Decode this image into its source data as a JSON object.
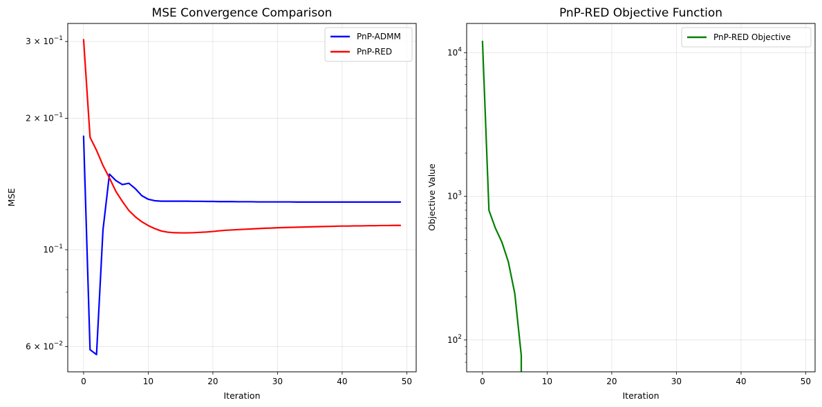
{
  "chart_data": [
    {
      "type": "line",
      "title": "MSE Convergence Comparison",
      "xlabel": "Iteration",
      "ylabel": "MSE",
      "yscale": "log",
      "xlim": [
        -2.45,
        51.45
      ],
      "ylim": [
        0.0525,
        0.33
      ],
      "grid": true,
      "legend": "top-right",
      "xticks": [
        0,
        10,
        20,
        30,
        40,
        50
      ],
      "xtick_labels": [
        "0",
        "10",
        "20",
        "30",
        "40",
        "50"
      ],
      "yticks": [
        0.06,
        0.1,
        0.2,
        0.3
      ],
      "ytick_labels": [
        {
          "base": "6 × 10",
          "exp": "−2"
        },
        {
          "base": "10",
          "exp": "−1"
        },
        {
          "base": "2 × 10",
          "exp": "−1"
        },
        {
          "base": "3 × 10",
          "exp": "−1"
        }
      ],
      "series": [
        {
          "name": "PnP-ADMM",
          "color": "#0000ff",
          "x": [
            0,
            1,
            2,
            3,
            4,
            5,
            6,
            7,
            8,
            9,
            10,
            11,
            12,
            13,
            14,
            15,
            16,
            17,
            18,
            19,
            20,
            21,
            22,
            23,
            24,
            25,
            26,
            27,
            28,
            29,
            30,
            31,
            32,
            33,
            34,
            35,
            36,
            37,
            38,
            39,
            40,
            41,
            42,
            43,
            44,
            45,
            46,
            47,
            48,
            49
          ],
          "y": [
            0.182,
            0.059,
            0.0575,
            0.111,
            0.149,
            0.144,
            0.141,
            0.142,
            0.138,
            0.133,
            0.1305,
            0.1295,
            0.1292,
            0.1292,
            0.1292,
            0.1292,
            0.1292,
            0.1291,
            0.1291,
            0.129,
            0.129,
            0.1289,
            0.1289,
            0.1289,
            0.1288,
            0.1288,
            0.1288,
            0.1287,
            0.1287,
            0.1287,
            0.1287,
            0.1287,
            0.1287,
            0.1286,
            0.1286,
            0.1286,
            0.1286,
            0.1286,
            0.1286,
            0.1286,
            0.1286,
            0.1286,
            0.1286,
            0.1286,
            0.1286,
            0.1286,
            0.1286,
            0.1286,
            0.1286,
            0.1286
          ]
        },
        {
          "name": "PnP-RED",
          "color": "#ff0000",
          "x": [
            0,
            1,
            2,
            3,
            4,
            5,
            6,
            7,
            8,
            9,
            10,
            11,
            12,
            13,
            14,
            15,
            16,
            17,
            18,
            19,
            20,
            21,
            22,
            23,
            24,
            25,
            26,
            27,
            28,
            29,
            30,
            31,
            32,
            33,
            34,
            35,
            36,
            37,
            38,
            39,
            40,
            41,
            42,
            43,
            44,
            45,
            46,
            47,
            48,
            49
          ],
          "y": [
            0.303,
            0.181,
            0.169,
            0.156,
            0.146,
            0.136,
            0.129,
            0.123,
            0.119,
            0.1159,
            0.1136,
            0.1118,
            0.1104,
            0.1097,
            0.1094,
            0.1093,
            0.1093,
            0.1094,
            0.1096,
            0.1098,
            0.1101,
            0.1105,
            0.1108,
            0.111,
            0.1112,
            0.1114,
            0.1116,
            0.1118,
            0.112,
            0.1121,
            0.1123,
            0.1124,
            0.1125,
            0.1126,
            0.1127,
            0.1128,
            0.1129,
            0.113,
            0.1131,
            0.1132,
            0.1133,
            0.1133,
            0.1134,
            0.1134,
            0.1135,
            0.1135,
            0.1136,
            0.1136,
            0.1137,
            0.1137
          ]
        }
      ]
    },
    {
      "type": "line",
      "title": "PnP-RED Objective Function",
      "xlabel": "Iteration",
      "ylabel": "Objective Value",
      "yscale": "log",
      "xlim": [
        -2.45,
        51.45
      ],
      "ylim": [
        60,
        16000
      ],
      "grid": true,
      "legend": "top-right",
      "xticks": [
        0,
        10,
        20,
        30,
        40,
        50
      ],
      "xtick_labels": [
        "0",
        "10",
        "20",
        "30",
        "40",
        "50"
      ],
      "yticks": [
        100,
        1000,
        10000
      ],
      "ytick_labels": [
        {
          "base": "10",
          "exp": "2"
        },
        {
          "base": "10",
          "exp": "3"
        },
        {
          "base": "10",
          "exp": "4"
        }
      ],
      "series": [
        {
          "name": "PnP-RED Objective",
          "color": "#008000",
          "x": [
            0,
            1,
            2,
            3,
            4,
            5,
            6,
            6.001
          ],
          "y": [
            12000,
            800,
            600,
            480,
            350,
            210,
            78,
            50
          ]
        }
      ]
    }
  ]
}
